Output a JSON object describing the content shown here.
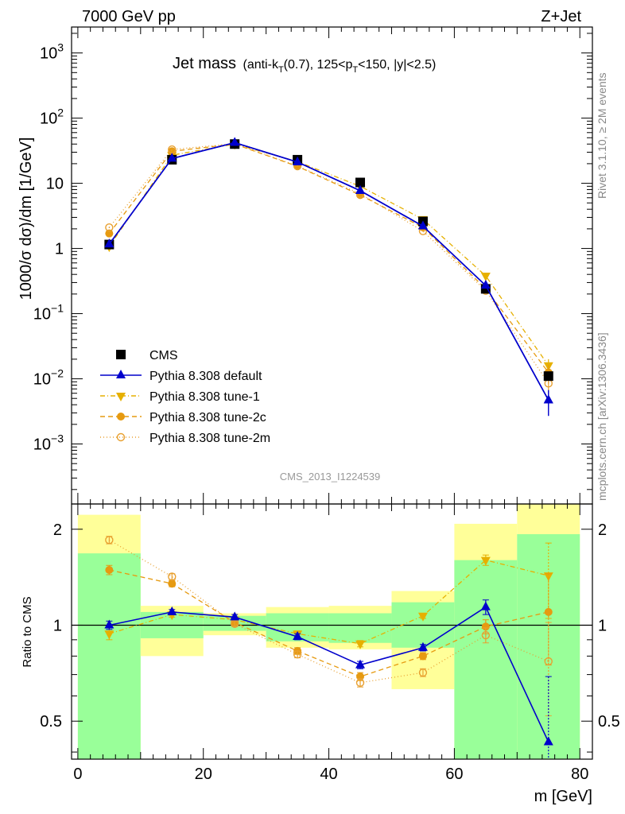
{
  "header": {
    "left": "7000 GeV pp",
    "right": "Z+Jet"
  },
  "title": {
    "main": "Jet mass",
    "detail": "(anti-k",
    "detail_sub1": "T",
    "detail_mid": "(0.7), 125<p",
    "detail_sub2": "T",
    "detail_end": "<150, |y|<2.5)"
  },
  "side_labels": {
    "rivet": "Rivet 3.1.10, ≥ 2M events",
    "mcplots": "mcplots.cern.ch [arXiv:1306.3436]"
  },
  "analysis_id": "CMS_2013_I1224539",
  "axes": {
    "ylabel_main": "1000/σ dσ)/dm [1/GeV]",
    "ylabel_ratio": "Ratio to CMS",
    "xlabel": "m [GeV]",
    "x_ticks": [
      "0",
      "20",
      "40",
      "60",
      "80"
    ],
    "main_y_ticks": [
      {
        "base": "10",
        "exp": "3",
        "v": 1000
      },
      {
        "base": "10",
        "exp": "2",
        "v": 100
      },
      {
        "base": "10",
        "exp": "",
        "v": 10
      },
      {
        "base": "1",
        "exp": "",
        "v": 1
      },
      {
        "base": "10",
        "exp": "−1",
        "v": 0.1
      },
      {
        "base": "10",
        "exp": "−2",
        "v": 0.01
      },
      {
        "base": "10",
        "exp": "−3",
        "v": 0.001
      }
    ],
    "ratio_y_ticks": [
      "2",
      "1",
      "0.5"
    ]
  },
  "legend": {
    "items": [
      "CMS",
      "Pythia 8.308 default",
      "Pythia 8.308 tune-1",
      "Pythia 8.308 tune-2c",
      "Pythia 8.308 tune-2m"
    ]
  },
  "colors": {
    "cms": "#000000",
    "default": "#0000cc",
    "tune1": "#e6b000",
    "tune2c": "#e69a10",
    "tune2m": "#e8a030",
    "band_inner": "#99ff99",
    "band_outer": "#ffff99"
  },
  "chart_data": {
    "type": "line",
    "x_range": [
      -1,
      82
    ],
    "main_ylim": [
      0.00012,
      2500
    ],
    "main_log": true,
    "ratio_ylim": [
      0.38,
      2.4
    ],
    "ratio_log": true,
    "x": [
      5,
      15,
      25,
      35,
      45,
      55,
      65,
      75
    ],
    "bins": [
      [
        0,
        10
      ],
      [
        10,
        20
      ],
      [
        20,
        30
      ],
      [
        30,
        40
      ],
      [
        40,
        50
      ],
      [
        50,
        60
      ],
      [
        60,
        70
      ],
      [
        70,
        80
      ]
    ],
    "series": [
      {
        "name": "CMS",
        "style": "square",
        "values": [
          1.15,
          23,
          40,
          23,
          10.3,
          2.6,
          0.24,
          0.011
        ]
      },
      {
        "name": "Pythia 8.308 default",
        "style": "tri-up",
        "values": [
          1.16,
          24,
          42,
          21.2,
          7.7,
          2.2,
          0.27,
          0.0047
        ],
        "yerr": [
          0.05,
          0.5,
          0.8,
          0.4,
          0.2,
          0.05,
          0.02,
          0.002
        ]
      },
      {
        "name": "Pythia 8.308 tune-1",
        "style": "tri-down",
        "values": [
          1.07,
          27,
          40,
          21.5,
          9.0,
          2.8,
          0.38,
          0.016
        ],
        "yerr": [
          0.05,
          0.5,
          0.8,
          0.4,
          0.2,
          0.05,
          0.02,
          0.004
        ]
      },
      {
        "name": "Pythia 8.308 tune-2c",
        "style": "circle",
        "values": [
          1.7,
          31,
          40,
          18.2,
          6.6,
          2.1,
          0.24,
          0.0125
        ],
        "yerr": [
          0.05,
          0.5,
          0.8,
          0.4,
          0.2,
          0.05,
          0.02,
          0.004
        ]
      },
      {
        "name": "Pythia 8.308 tune-2m",
        "style": "circle-open",
        "values": [
          2.1,
          33,
          40.5,
          18.5,
          6.9,
          1.85,
          0.225,
          0.0085
        ],
        "yerr": [
          0.05,
          0.5,
          0.8,
          0.4,
          0.2,
          0.05,
          0.02,
          0.003
        ]
      }
    ],
    "ratio": {
      "band_outer": [
        [
          0.38,
          2.22
        ],
        [
          0.8,
          1.15
        ],
        [
          0.93,
          1.09
        ],
        [
          0.85,
          1.14
        ],
        [
          0.84,
          1.15
        ],
        [
          0.63,
          1.28
        ],
        [
          0.38,
          2.08
        ],
        [
          0.38,
          2.4
        ]
      ],
      "band_inner": [
        [
          0.38,
          1.68
        ],
        [
          0.91,
          1.1
        ],
        [
          0.96,
          1.07
        ],
        [
          0.89,
          1.09
        ],
        [
          0.88,
          1.09
        ],
        [
          0.85,
          1.18
        ],
        [
          0.38,
          1.6
        ],
        [
          0.38,
          1.93
        ]
      ],
      "series": [
        {
          "name": "Pythia 8.308 default",
          "values": [
            1.0,
            1.1,
            1.06,
            0.92,
            0.75,
            0.85,
            1.14,
            0.43
          ],
          "yerr": [
            0.03,
            0.02,
            0.02,
            0.02,
            0.02,
            0.02,
            0.06,
            0.26
          ]
        },
        {
          "name": "Pythia 8.308 tune-1",
          "values": [
            0.94,
            1.08,
            1.04,
            0.94,
            0.875,
            1.07,
            1.6,
            1.43
          ],
          "yerr": [
            0.04,
            0.02,
            0.02,
            0.02,
            0.02,
            0.02,
            0.06,
            0.38
          ]
        },
        {
          "name": "Pythia 8.308 tune-2c",
          "values": [
            1.49,
            1.35,
            1.02,
            0.83,
            0.69,
            0.8,
            0.99,
            1.1
          ],
          "yerr": [
            0.05,
            0.03,
            0.02,
            0.02,
            0.02,
            0.02,
            0.05,
            0.35
          ]
        },
        {
          "name": "Pythia 8.308 tune-2m",
          "values": [
            1.85,
            1.42,
            1.01,
            0.81,
            0.66,
            0.71,
            0.93,
            0.77
          ],
          "yerr": [
            0.05,
            0.03,
            0.02,
            0.02,
            0.02,
            0.02,
            0.05,
            0.25
          ]
        }
      ]
    }
  }
}
